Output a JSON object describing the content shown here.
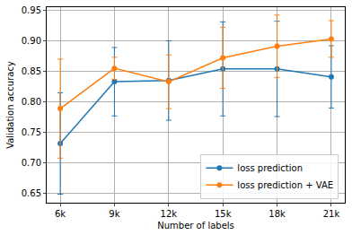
{
  "chart_data": {
    "type": "line",
    "x_label": "Number of labels",
    "y_label": "Validation accuracy",
    "categories": [
      "6k",
      "9k",
      "12k",
      "15k",
      "18k",
      "21k"
    ],
    "series": [
      {
        "name": "loss prediction",
        "color": "#1f77b4",
        "marker": "circle",
        "values": [
          0.732,
          0.833,
          0.835,
          0.854,
          0.854,
          0.841
        ],
        "error": [
          0.083,
          0.056,
          0.065,
          0.077,
          0.078,
          0.051
        ]
      },
      {
        "name": "loss prediction + VAE",
        "color": "#ff7f0e",
        "marker": "circle",
        "values": [
          0.789,
          0.855,
          0.833,
          0.872,
          0.891,
          0.903
        ],
        "error": [
          0.081,
          0.018,
          0.044,
          0.05,
          0.051,
          0.03
        ]
      }
    ],
    "ylim": [
      0.635,
      0.955
    ],
    "yticks": [
      0.65,
      {
        "value": 0.7,
        "label": "0.70"
      },
      0.75,
      {
        "value": 0.8,
        "label": "0.80"
      },
      0.85,
      {
        "value": 0.9,
        "label": "0.90"
      },
      0.95
    ],
    "grid": true,
    "legend": "lower right"
  }
}
